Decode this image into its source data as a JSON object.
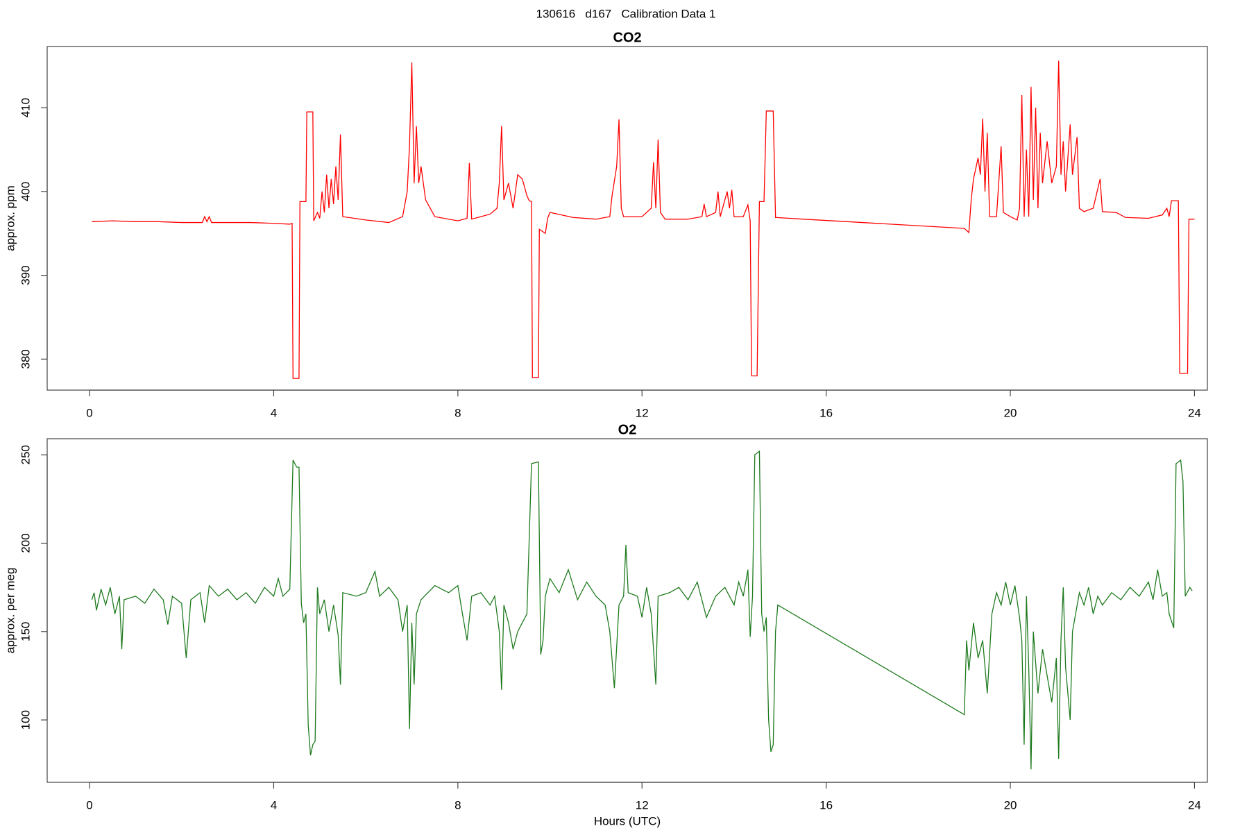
{
  "title": "130616   d167   Calibration Data 1",
  "chart_data": [
    {
      "type": "line",
      "title": "CO2",
      "y_label": "approx. ppm",
      "color": "#ff0000",
      "xlim": [
        -0.92,
        24.28
      ],
      "xticks": [
        0,
        4,
        8,
        12,
        16,
        20,
        24
      ],
      "ylim": [
        376.3,
        417.3
      ],
      "yticks": [
        380,
        390,
        400,
        410
      ],
      "x": [
        0.05,
        0.5,
        1,
        1.5,
        2,
        2.45,
        2.5,
        2.55,
        2.6,
        2.65,
        3,
        3.5,
        4,
        4.35,
        4.4,
        4.42,
        4.55,
        4.57,
        4.7,
        4.72,
        4.85,
        4.87,
        4.95,
        5.0,
        5.05,
        5.1,
        5.15,
        5.2,
        5.25,
        5.3,
        5.35,
        5.4,
        5.45,
        5.5,
        6,
        6.5,
        6.8,
        6.9,
        6.95,
        7.0,
        7.05,
        7.1,
        7.15,
        7.2,
        7.3,
        7.4,
        7.5,
        8.0,
        8.2,
        8.25,
        8.3,
        8.5,
        8.7,
        8.85,
        8.9,
        8.95,
        9.0,
        9.1,
        9.2,
        9.3,
        9.4,
        9.5,
        9.55,
        9.6,
        9.62,
        9.75,
        9.77,
        9.9,
        9.95,
        10.0,
        10.5,
        11,
        11.3,
        11.35,
        11.45,
        11.5,
        11.55,
        11.6,
        12.0,
        12.2,
        12.25,
        12.3,
        12.35,
        12.4,
        12.5,
        13.0,
        13.3,
        13.35,
        13.4,
        13.6,
        13.65,
        13.7,
        13.85,
        13.9,
        13.95,
        14.0,
        14.2,
        14.3,
        14.35,
        14.38,
        14.5,
        14.55,
        14.65,
        14.7,
        14.85,
        14.9,
        15.5,
        19.0,
        19.1,
        19.15,
        19.2,
        19.3,
        19.35,
        19.4,
        19.45,
        19.5,
        19.55,
        19.7,
        19.8,
        19.85,
        20.0,
        20.15,
        20.2,
        20.25,
        20.3,
        20.35,
        20.4,
        20.45,
        20.5,
        20.55,
        20.6,
        20.65,
        20.7,
        20.8,
        20.9,
        21.0,
        21.05,
        21.1,
        21.15,
        21.2,
        21.3,
        21.35,
        21.45,
        21.5,
        21.6,
        21.8,
        21.95,
        22.0,
        22.3,
        22.5,
        23.0,
        23.3,
        23.4,
        23.45,
        23.5,
        23.65,
        23.68,
        23.85,
        23.88,
        24.0
      ],
      "values": [
        396.4,
        396.5,
        396.4,
        396.4,
        396.3,
        396.3,
        397.0,
        396.4,
        397.0,
        396.3,
        396.3,
        396.3,
        396.2,
        396.1,
        396.2,
        377.7,
        377.7,
        398.8,
        398.8,
        409.5,
        409.5,
        396.5,
        397.5,
        396.8,
        400,
        397.5,
        402,
        398,
        401.5,
        398.5,
        403,
        399,
        406.8,
        397,
        396.6,
        396.3,
        397,
        400,
        405.5,
        415.4,
        401,
        407.8,
        401,
        403,
        399,
        398,
        397,
        396.5,
        396.8,
        403.4,
        396.7,
        397,
        397.3,
        398,
        401,
        407.8,
        399,
        401,
        398,
        402,
        401.5,
        399.5,
        398.9,
        398.8,
        377.8,
        377.8,
        395.5,
        395.0,
        396.8,
        397.5,
        396.9,
        396.7,
        397,
        399.5,
        403,
        408.6,
        398,
        397,
        397,
        398,
        403.5,
        398,
        406.2,
        397.5,
        396.7,
        396.7,
        397,
        398.5,
        397,
        397.5,
        400,
        397,
        400,
        398,
        400.2,
        397,
        397,
        398.4,
        396.5,
        378.0,
        378.0,
        398.8,
        398.8,
        409.6,
        409.6,
        396.9,
        396.7,
        395.6,
        395.1,
        399,
        401.5,
        404,
        402,
        408.7,
        400,
        407,
        397,
        397,
        405.4,
        397.5,
        397,
        396.6,
        398,
        411.5,
        397,
        405,
        397,
        412.5,
        399,
        410,
        398,
        407,
        401,
        406,
        401,
        403,
        415.6,
        402,
        406,
        400,
        408,
        402,
        406.5,
        398,
        397.6,
        398,
        401.5,
        397.6,
        397.5,
        396.9,
        396.8,
        397.2,
        398,
        397.0,
        398.9,
        398.9,
        378.3,
        378.3,
        396.7,
        396.7
      ]
    },
    {
      "type": "line",
      "title": "O2",
      "y_label": "approx. per meg",
      "x_label": "Hours (UTC)",
      "color": "#1e7a1e",
      "xlim": [
        -0.92,
        24.28
      ],
      "xticks": [
        0,
        4,
        8,
        12,
        16,
        20,
        24
      ],
      "ylim": [
        64.7,
        259.1
      ],
      "yticks": [
        100,
        150,
        200,
        250
      ],
      "x": [
        0.05,
        0.1,
        0.15,
        0.25,
        0.35,
        0.45,
        0.55,
        0.65,
        0.7,
        0.75,
        1.0,
        1.2,
        1.4,
        1.6,
        1.7,
        1.8,
        2.0,
        2.1,
        2.2,
        2.4,
        2.5,
        2.6,
        2.8,
        3.0,
        3.2,
        3.4,
        3.6,
        3.8,
        4.0,
        4.1,
        4.2,
        4.35,
        4.42,
        4.5,
        4.55,
        4.6,
        4.65,
        4.7,
        4.75,
        4.8,
        4.85,
        4.9,
        4.95,
        5.0,
        5.1,
        5.2,
        5.3,
        5.4,
        5.45,
        5.5,
        5.8,
        6.0,
        6.2,
        6.3,
        6.5,
        6.7,
        6.8,
        6.9,
        6.95,
        7.0,
        7.05,
        7.1,
        7.2,
        7.5,
        7.8,
        8.0,
        8.1,
        8.2,
        8.3,
        8.5,
        8.7,
        8.8,
        8.9,
        8.95,
        9.0,
        9.1,
        9.2,
        9.3,
        9.4,
        9.5,
        9.6,
        9.75,
        9.8,
        9.85,
        9.9,
        10.0,
        10.2,
        10.4,
        10.6,
        10.8,
        11.0,
        11.2,
        11.3,
        11.4,
        11.5,
        11.6,
        11.65,
        11.7,
        11.9,
        12.0,
        12.1,
        12.2,
        12.3,
        12.35,
        12.6,
        12.8,
        13.0,
        13.2,
        13.4,
        13.6,
        13.8,
        14.0,
        14.1,
        14.2,
        14.3,
        14.35,
        14.4,
        14.45,
        14.55,
        14.6,
        14.65,
        14.7,
        14.75,
        14.8,
        14.85,
        14.9,
        14.95,
        19.0,
        19.05,
        19.1,
        19.2,
        19.3,
        19.4,
        19.5,
        19.6,
        19.7,
        19.8,
        19.9,
        20.0,
        20.1,
        20.2,
        20.25,
        20.3,
        20.35,
        20.4,
        20.45,
        20.5,
        20.6,
        20.7,
        20.8,
        20.9,
        21.0,
        21.05,
        21.1,
        21.15,
        21.2,
        21.3,
        21.35,
        21.5,
        21.6,
        21.7,
        21.8,
        21.9,
        22.0,
        22.2,
        22.4,
        22.6,
        22.8,
        23.0,
        23.1,
        23.2,
        23.3,
        23.4,
        23.45,
        23.55,
        23.6,
        23.7,
        23.75,
        23.8,
        23.9,
        23.95
      ],
      "values": [
        168,
        172,
        162,
        174,
        165,
        175,
        160,
        170,
        140,
        168,
        170,
        166,
        174,
        168,
        154,
        170,
        166,
        135,
        168,
        172,
        155,
        176,
        170,
        174,
        168,
        172,
        166,
        175,
        170,
        180,
        170,
        174,
        247,
        243,
        243,
        166,
        155,
        160,
        97,
        80,
        86,
        88,
        175,
        160,
        168,
        150,
        165,
        148,
        120,
        172,
        170,
        172,
        184,
        170,
        175,
        168,
        150,
        165,
        95,
        155,
        120,
        160,
        168,
        176,
        172,
        176,
        160,
        145,
        170,
        172,
        165,
        170,
        150,
        117,
        165,
        155,
        140,
        150,
        155,
        160,
        245,
        246,
        137,
        145,
        170,
        180,
        172,
        185,
        168,
        178,
        170,
        165,
        150,
        118,
        165,
        170,
        199,
        172,
        170,
        158,
        175,
        160,
        120,
        170,
        172,
        175,
        168,
        178,
        158,
        170,
        175,
        165,
        178,
        170,
        185,
        147,
        170,
        250,
        252,
        160,
        150,
        158,
        100,
        82,
        86,
        150,
        165,
        103,
        145,
        128,
        155,
        135,
        145,
        115,
        160,
        172,
        165,
        178,
        165,
        176,
        158,
        145,
        86,
        170,
        130,
        72,
        150,
        115,
        140,
        125,
        110,
        135,
        78,
        145,
        175,
        130,
        100,
        150,
        172,
        165,
        175,
        160,
        170,
        165,
        172,
        168,
        175,
        170,
        178,
        168,
        185,
        170,
        172,
        160,
        152,
        245,
        247,
        235,
        170,
        175,
        173
      ]
    }
  ]
}
